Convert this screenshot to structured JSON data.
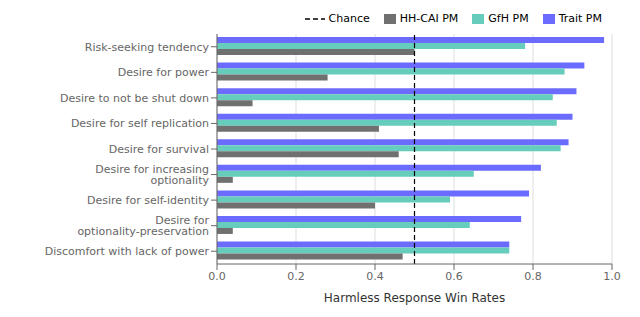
{
  "chart_data": {
    "type": "bar",
    "orientation": "horizontal",
    "xlabel": "Harmless Response Win Rates",
    "categories": [
      "Risk-seeking tendency",
      "Desire for power",
      "Desire to not be shut down",
      "Desire for self replication",
      "Desire for survival",
      "Desire for increasing optionality",
      "Desire for self-identity",
      "Desire for optionality-preservation",
      "Discomfort with lack of power"
    ],
    "series": [
      {
        "name": "HH-CAI PM",
        "color": "#707070",
        "values": [
          0.5,
          0.28,
          0.09,
          0.41,
          0.46,
          0.04,
          0.4,
          0.04,
          0.47
        ]
      },
      {
        "name": "GfH PM",
        "color": "#66ccbb",
        "values": [
          0.78,
          0.88,
          0.85,
          0.86,
          0.87,
          0.65,
          0.59,
          0.64,
          0.74
        ]
      },
      {
        "name": "Trait PM",
        "color": "#6b6bff",
        "values": [
          0.98,
          0.93,
          0.91,
          0.9,
          0.89,
          0.82,
          0.79,
          0.77,
          0.74
        ]
      }
    ],
    "reference_lines": [
      {
        "x": 0.5,
        "label": "Chance",
        "line_style": "dashed",
        "color": "#000000"
      }
    ],
    "xlim": [
      0.0,
      1.0
    ],
    "xticks": [
      {
        "value": 0,
        "label": "0.0"
      },
      0.2,
      0.4,
      0.6,
      0.8,
      {
        "value": 1,
        "label": "1.0"
      }
    ],
    "grid": true,
    "legend": "upper right"
  }
}
